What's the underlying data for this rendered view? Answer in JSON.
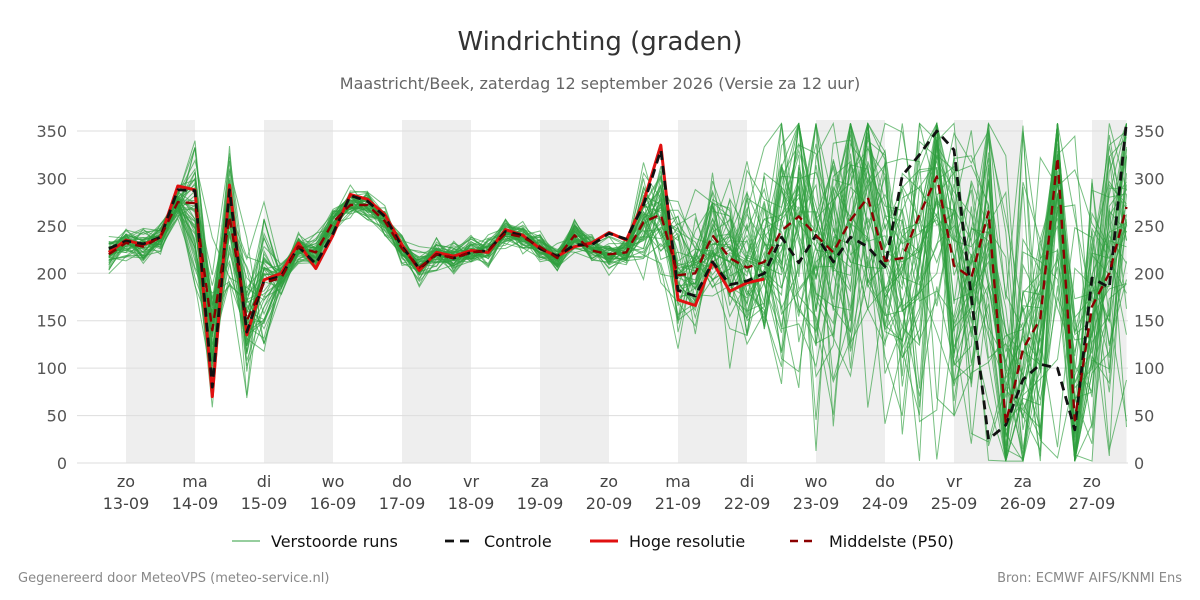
{
  "title": "Windrichting (graden)",
  "subtitle": "Maastricht/Beek, zaterdag 12 september 2026 (Versie za 12 uur)",
  "footer_left": "Gegenereerd door MeteoVPS (meteo-service.nl)",
  "footer_right": "Bron: ECMWF AIFS/KNMI Ens",
  "colors": {
    "ensemble": "#2e9e3e",
    "control": "#111111",
    "hires": "#e01010",
    "median": "#8b0000",
    "weekend_band": "#eeeeee",
    "grid": "#dddddd"
  },
  "legend": [
    {
      "key": "ensemble",
      "label": "Verstoorde runs"
    },
    {
      "key": "control",
      "label": "Controle"
    },
    {
      "key": "hires",
      "label": "Hoge resolutie"
    },
    {
      "key": "median",
      "label": "Middelste (P50)"
    }
  ],
  "chart_data": {
    "type": "line",
    "ylim": [
      0,
      360
    ],
    "yticks": [
      0,
      50,
      100,
      150,
      200,
      250,
      300,
      350
    ],
    "xlim": [
      -0.25,
      14.5
    ],
    "grid": true,
    "legend_position": "bottom",
    "days": [
      {
        "day": "zo",
        "date": "13-09"
      },
      {
        "day": "ma",
        "date": "14-09"
      },
      {
        "day": "di",
        "date": "15-09"
      },
      {
        "day": "wo",
        "date": "16-09"
      },
      {
        "day": "do",
        "date": "17-09"
      },
      {
        "day": "vr",
        "date": "18-09"
      },
      {
        "day": "za",
        "date": "19-09"
      },
      {
        "day": "zo",
        "date": "20-09"
      },
      {
        "day": "ma",
        "date": "21-09"
      },
      {
        "day": "di",
        "date": "22-09"
      },
      {
        "day": "wo",
        "date": "23-09"
      },
      {
        "day": "do",
        "date": "24-09"
      },
      {
        "day": "vr",
        "date": "25-09"
      },
      {
        "day": "za",
        "date": "26-09"
      },
      {
        "day": "zo",
        "date": "27-09"
      }
    ],
    "shaded_days": [
      [
        0,
        1
      ],
      [
        2,
        3
      ],
      [
        4,
        5
      ],
      [
        6,
        7
      ],
      [
        8,
        9
      ],
      [
        10,
        11
      ],
      [
        12,
        13
      ],
      [
        14,
        14.5
      ]
    ],
    "series": [
      {
        "name": "Hoge resolutie",
        "key": "hires",
        "points": [
          [
            -0.25,
            222
          ],
          [
            0,
            235
          ],
          [
            0.25,
            230
          ],
          [
            0.5,
            238
          ],
          [
            0.75,
            292
          ],
          [
            1,
            288
          ],
          [
            1.25,
            70
          ],
          [
            1.5,
            293
          ],
          [
            1.75,
            135
          ],
          [
            2,
            193
          ],
          [
            2.25,
            200
          ],
          [
            2.5,
            232
          ],
          [
            2.75,
            205
          ],
          [
            3,
            240
          ],
          [
            3.25,
            283
          ],
          [
            3.5,
            278
          ],
          [
            3.75,
            262
          ],
          [
            4,
            230
          ],
          [
            4.25,
            203
          ],
          [
            4.5,
            222
          ],
          [
            4.75,
            218
          ],
          [
            5,
            224
          ],
          [
            5.25,
            222
          ],
          [
            5.5,
            246
          ],
          [
            5.75,
            240
          ],
          [
            6,
            226
          ],
          [
            6.25,
            218
          ],
          [
            6.5,
            228
          ],
          [
            6.75,
            232
          ],
          [
            7,
            243
          ],
          [
            7.25,
            235
          ],
          [
            7.5,
            275
          ],
          [
            7.75,
            335
          ],
          [
            8,
            172
          ],
          [
            8.25,
            166
          ],
          [
            8.5,
            212
          ],
          [
            8.75,
            181
          ],
          [
            9,
            190
          ],
          [
            9.25,
            194
          ]
        ]
      },
      {
        "name": "Controle",
        "key": "control",
        "points": [
          [
            -0.25,
            226
          ],
          [
            0,
            234
          ],
          [
            0.25,
            231
          ],
          [
            0.5,
            238
          ],
          [
            0.75,
            288
          ],
          [
            1,
            287
          ],
          [
            1.25,
            80
          ],
          [
            1.5,
            288
          ],
          [
            1.75,
            138
          ],
          [
            2,
            192
          ],
          [
            2.25,
            197
          ],
          [
            2.5,
            228
          ],
          [
            2.75,
            210
          ],
          [
            3,
            242
          ],
          [
            3.25,
            282
          ],
          [
            3.5,
            276
          ],
          [
            3.75,
            260
          ],
          [
            4,
            228
          ],
          [
            4.25,
            205
          ],
          [
            4.5,
            220
          ],
          [
            4.75,
            216
          ],
          [
            5,
            222
          ],
          [
            5.25,
            224
          ],
          [
            5.5,
            244
          ],
          [
            5.75,
            240
          ],
          [
            6,
            226
          ],
          [
            6.25,
            218
          ],
          [
            6.5,
            230
          ],
          [
            6.75,
            230
          ],
          [
            7,
            242
          ],
          [
            7.25,
            236
          ],
          [
            7.5,
            272
          ],
          [
            7.75,
            330
          ],
          [
            8,
            182
          ],
          [
            8.25,
            176
          ],
          [
            8.5,
            212
          ],
          [
            8.75,
            188
          ],
          [
            9,
            192
          ],
          [
            9.25,
            200
          ],
          [
            9.5,
            238
          ],
          [
            9.75,
            211
          ],
          [
            10,
            240
          ],
          [
            10.25,
            212
          ],
          [
            10.5,
            238
          ],
          [
            10.75,
            228
          ],
          [
            11,
            207
          ],
          [
            11.25,
            303
          ],
          [
            11.5,
            325
          ],
          [
            11.75,
            350
          ],
          [
            12,
            330
          ],
          [
            12.25,
            175
          ],
          [
            12.5,
            25
          ],
          [
            12.75,
            40
          ],
          [
            13,
            88
          ],
          [
            13.25,
            104
          ],
          [
            13.5,
            100
          ],
          [
            13.75,
            35
          ],
          [
            14,
            195
          ],
          [
            14.25,
            185
          ],
          [
            14.5,
            360
          ]
        ]
      },
      {
        "name": "Middelste (P50)",
        "key": "median",
        "points": [
          [
            -0.25,
            220
          ],
          [
            0,
            232
          ],
          [
            0.25,
            228
          ],
          [
            0.5,
            238
          ],
          [
            0.75,
            275
          ],
          [
            1,
            274
          ],
          [
            1.25,
            140
          ],
          [
            1.5,
            260
          ],
          [
            1.75,
            150
          ],
          [
            2,
            190
          ],
          [
            2.25,
            195
          ],
          [
            2.5,
            228
          ],
          [
            2.75,
            222
          ],
          [
            3,
            254
          ],
          [
            3.25,
            272
          ],
          [
            3.5,
            272
          ],
          [
            3.75,
            255
          ],
          [
            4,
            226
          ],
          [
            4.25,
            206
          ],
          [
            4.5,
            220
          ],
          [
            4.75,
            216
          ],
          [
            5,
            222
          ],
          [
            5.25,
            224
          ],
          [
            5.5,
            242
          ],
          [
            5.75,
            238
          ],
          [
            6,
            228
          ],
          [
            6.25,
            216
          ],
          [
            6.5,
            240
          ],
          [
            6.75,
            224
          ],
          [
            7,
            220
          ],
          [
            7.25,
            222
          ],
          [
            7.5,
            254
          ],
          [
            7.75,
            262
          ],
          [
            8,
            198
          ],
          [
            8.25,
            200
          ],
          [
            8.5,
            240
          ],
          [
            8.75,
            216
          ],
          [
            9,
            206
          ],
          [
            9.25,
            212
          ],
          [
            9.5,
            245
          ],
          [
            9.75,
            260
          ],
          [
            10,
            240
          ],
          [
            10.25,
            222
          ],
          [
            10.5,
            256
          ],
          [
            10.75,
            280
          ],
          [
            11,
            213
          ],
          [
            11.25,
            216
          ],
          [
            11.5,
            262
          ],
          [
            11.75,
            302
          ],
          [
            12,
            208
          ],
          [
            12.25,
            195
          ],
          [
            12.5,
            265
          ],
          [
            12.75,
            42
          ],
          [
            13,
            120
          ],
          [
            13.25,
            152
          ],
          [
            13.5,
            322
          ],
          [
            13.75,
            45
          ],
          [
            14,
            165
          ],
          [
            14.25,
            200
          ],
          [
            14.5,
            270
          ]
        ]
      }
    ],
    "ensemble": {
      "name": "Verstoorde runs",
      "key": "ensemble",
      "members": 50,
      "x_step": 0.25
    }
  }
}
